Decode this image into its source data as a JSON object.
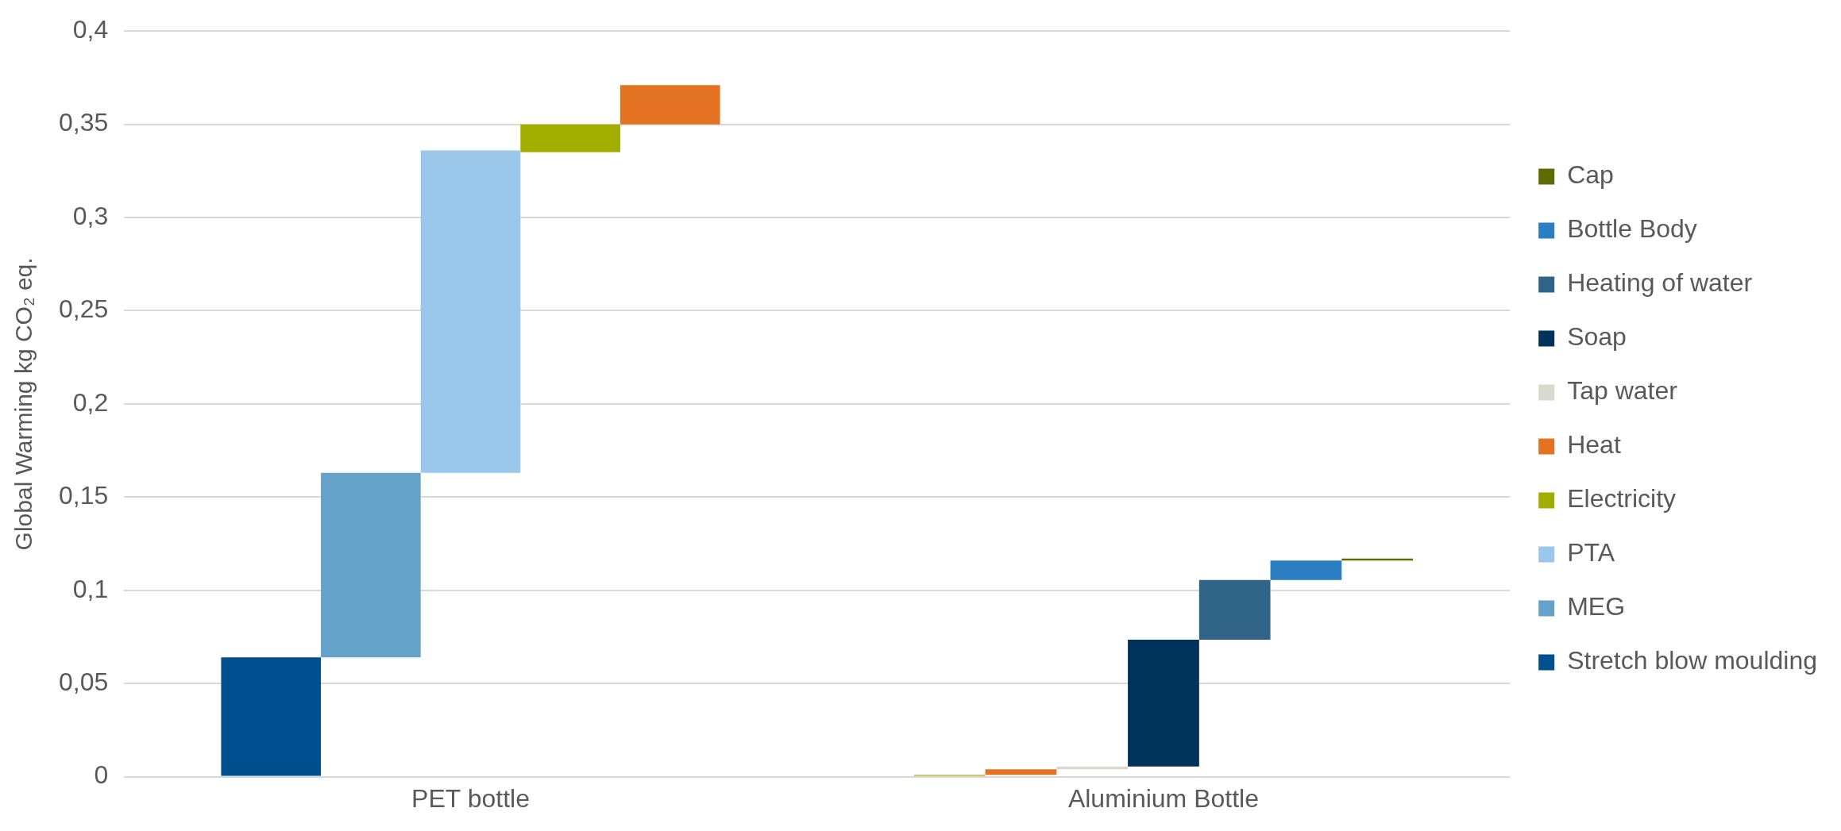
{
  "chart_data": {
    "type": "bar",
    "ylabel": "Global Warming kg CO₂ eq.",
    "categories": [
      "PET bottle",
      "Aluminium Bottle"
    ],
    "series": [
      {
        "name": "Stretch blow moulding",
        "color": "#00508f",
        "values": [
          0.064,
          null
        ],
        "base": [
          0,
          null
        ]
      },
      {
        "name": "MEG",
        "color": "#65a1c9",
        "values": [
          0.099,
          null
        ],
        "base": [
          0.064,
          null
        ]
      },
      {
        "name": "PTA",
        "color": "#9bc7ea",
        "values": [
          0.173,
          null
        ],
        "base": [
          0.163,
          null
        ]
      },
      {
        "name": "Electricity",
        "color": "#a2ad00",
        "values": [
          0.015,
          0.001
        ],
        "base": [
          0.335,
          0
        ]
      },
      {
        "name": "Heat",
        "color": "#e37222",
        "values": [
          0.021,
          0.003
        ],
        "base": [
          0.35,
          0.001
        ]
      },
      {
        "name": "Tap water",
        "color": "#d9d9ce",
        "values": [
          null,
          0.0015
        ],
        "base": [
          null,
          0.004
        ]
      },
      {
        "name": "Soap",
        "color": "#003359",
        "values": [
          null,
          0.068
        ],
        "base": [
          null,
          0.0055
        ]
      },
      {
        "name": "Heating of water",
        "color": "#306486",
        "values": [
          null,
          0.032
        ],
        "base": [
          null,
          0.0735
        ]
      },
      {
        "name": "Bottle Body",
        "color": "#2a7ec1",
        "values": [
          null,
          0.0105
        ],
        "base": [
          null,
          0.1055
        ]
      },
      {
        "name": "Cap",
        "color": "#5f6a00",
        "values": [
          null,
          0.001
        ],
        "base": [
          null,
          0.116
        ]
      }
    ],
    "ylim": [
      0,
      0.4
    ],
    "yticks": [
      0,
      {
        "value": 0.05,
        "label": "0,05"
      },
      {
        "value": 0.1,
        "label": "0,1"
      },
      {
        "value": 0.15,
        "label": "0,15"
      },
      {
        "value": 0.2,
        "label": "0,2"
      },
      {
        "value": 0.25,
        "label": "0,25"
      },
      {
        "value": 0.3,
        "label": "0,3"
      },
      {
        "value": 0.35,
        "label": "0,35"
      },
      {
        "value": 0.4,
        "label": "0,4"
      }
    ],
    "grid": "y",
    "legend": "right"
  }
}
